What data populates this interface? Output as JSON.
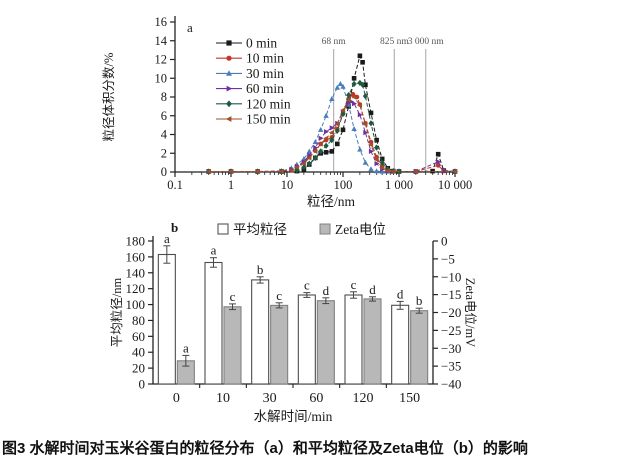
{
  "caption": "图3 水解时间对玉米谷蛋白的粒径分布（a）和平均粒径及Zeta电位（b）的影响",
  "chart_data": [
    {
      "type": "line",
      "panel_label": "a",
      "xlabel": "粒径/nm",
      "ylabel": "粒径体积分数/%",
      "x_scale": "log",
      "xlim": [
        0.1,
        10000
      ],
      "x_tick_labels": [
        "0.1",
        "1",
        "10",
        "100",
        "1 000",
        "10 000"
      ],
      "ylim": [
        0,
        16
      ],
      "y_tick_step": 2,
      "grid": false,
      "legend_position": "inside-top-left",
      "annotation_color": "#595959",
      "annotation_line_color": "#b5b5b5",
      "annotations": [
        {
          "x": 68,
          "label": "68 nm"
        },
        {
          "x": 825,
          "label": "825 nm"
        },
        {
          "x": 3000,
          "label": "3 000 nm"
        }
      ],
      "series": [
        {
          "name": "0 min",
          "color": "#1a1a1a",
          "marker": "square",
          "points": [
            [
              0.4,
              0.05
            ],
            [
              1,
              0.05
            ],
            [
              3,
              0.05
            ],
            [
              8,
              0.05
            ],
            [
              15,
              0.1
            ],
            [
              20,
              0.3
            ],
            [
              25,
              0.8
            ],
            [
              32,
              1.5
            ],
            [
              40,
              2.0
            ],
            [
              50,
              2.1
            ],
            [
              63,
              2.2
            ],
            [
              79,
              3.0
            ],
            [
              100,
              4.5
            ],
            [
              126,
              7.0
            ],
            [
              158,
              10.0
            ],
            [
              200,
              12.4
            ],
            [
              224,
              11.7
            ],
            [
              251,
              9.3
            ],
            [
              316,
              6.3
            ],
            [
              398,
              3.4
            ],
            [
              501,
              1.4
            ],
            [
              631,
              0.4
            ],
            [
              794,
              0.1
            ],
            [
              1000,
              0.05
            ],
            [
              2000,
              0.05
            ],
            [
              3981,
              0.1
            ],
            [
              5012,
              1.9
            ],
            [
              6310,
              0.15
            ],
            [
              10000,
              0.05
            ]
          ]
        },
        {
          "name": "10 min",
          "color": "#c1352b",
          "marker": "circle",
          "points": [
            [
              0.4,
              0.05
            ],
            [
              1,
              0.05
            ],
            [
              3,
              0.05
            ],
            [
              8,
              0.08
            ],
            [
              12,
              0.2
            ],
            [
              15,
              0.5
            ],
            [
              20,
              1.0
            ],
            [
              25,
              1.6
            ],
            [
              32,
              2.3
            ],
            [
              40,
              3.0
            ],
            [
              50,
              3.4
            ],
            [
              63,
              3.7
            ],
            [
              79,
              4.6
            ],
            [
              100,
              6.2
            ],
            [
              126,
              7.8
            ],
            [
              150,
              8.3
            ],
            [
              178,
              8.0
            ],
            [
              200,
              7.2
            ],
            [
              251,
              5.2
            ],
            [
              316,
              3.2
            ],
            [
              398,
              1.6
            ],
            [
              501,
              0.6
            ],
            [
              631,
              0.15
            ],
            [
              794,
              0.05
            ],
            [
              2000,
              0.05
            ],
            [
              5012,
              0.7
            ],
            [
              6310,
              0.1
            ],
            [
              10000,
              0.05
            ]
          ]
        },
        {
          "name": "30 min",
          "color": "#4a7ebb",
          "marker": "triangle-up",
          "points": [
            [
              0.4,
              0.05
            ],
            [
              1,
              0.05
            ],
            [
              3,
              0.05
            ],
            [
              8,
              0.1
            ],
            [
              12,
              0.4
            ],
            [
              15,
              0.8
            ],
            [
              20,
              1.4
            ],
            [
              25,
              2.2
            ],
            [
              32,
              3.2
            ],
            [
              40,
              4.5
            ],
            [
              50,
              6.0
            ],
            [
              63,
              7.8
            ],
            [
              79,
              9.0
            ],
            [
              90,
              9.4
            ],
            [
              100,
              9.1
            ],
            [
              126,
              7.2
            ],
            [
              158,
              4.6
            ],
            [
              200,
              2.4
            ],
            [
              251,
              1.0
            ],
            [
              316,
              0.3
            ],
            [
              398,
              0.1
            ],
            [
              501,
              0.05
            ],
            [
              631,
              0.05
            ],
            [
              10000,
              0.05
            ]
          ]
        },
        {
          "name": "60 min",
          "color": "#70309f",
          "marker": "triangle-right",
          "points": [
            [
              0.4,
              0.05
            ],
            [
              1,
              0.05
            ],
            [
              3,
              0.05
            ],
            [
              8,
              0.1
            ],
            [
              12,
              0.3
            ],
            [
              15,
              0.6
            ],
            [
              20,
              1.1
            ],
            [
              25,
              1.8
            ],
            [
              32,
              2.6
            ],
            [
              40,
              3.6
            ],
            [
              50,
              4.3
            ],
            [
              63,
              4.7
            ],
            [
              79,
              5.2
            ],
            [
              100,
              6.4
            ],
            [
              126,
              7.4
            ],
            [
              141,
              7.5
            ],
            [
              158,
              7.3
            ],
            [
              200,
              6.1
            ],
            [
              251,
              4.2
            ],
            [
              316,
              2.2
            ],
            [
              398,
              0.9
            ],
            [
              501,
              0.3
            ],
            [
              631,
              0.1
            ],
            [
              794,
              0.05
            ],
            [
              2000,
              0.05
            ],
            [
              5012,
              1.1
            ],
            [
              6310,
              0.1
            ],
            [
              10000,
              0.05
            ]
          ]
        },
        {
          "name": "120 min",
          "color": "#1d5c40",
          "marker": "diamond",
          "points": [
            [
              0.4,
              0.05
            ],
            [
              1,
              0.05
            ],
            [
              3,
              0.05
            ],
            [
              8,
              0.05
            ],
            [
              15,
              0.2
            ],
            [
              20,
              0.5
            ],
            [
              25,
              0.9
            ],
            [
              32,
              1.5
            ],
            [
              40,
              2.2
            ],
            [
              50,
              2.8
            ],
            [
              63,
              3.4
            ],
            [
              79,
              4.4
            ],
            [
              100,
              6.2
            ],
            [
              126,
              8.2
            ],
            [
              158,
              9.4
            ],
            [
              200,
              9.5
            ],
            [
              224,
              9.3
            ],
            [
              251,
              8.1
            ],
            [
              316,
              5.2
            ],
            [
              398,
              2.6
            ],
            [
              501,
              1.0
            ],
            [
              631,
              0.3
            ],
            [
              794,
              0.1
            ],
            [
              1000,
              0.05
            ],
            [
              10000,
              0.05
            ]
          ]
        },
        {
          "name": "150 min",
          "color": "#a04f28",
          "marker": "triangle-left",
          "points": [
            [
              0.4,
              0.05
            ],
            [
              1,
              0.05
            ],
            [
              3,
              0.05
            ],
            [
              8,
              0.08
            ],
            [
              12,
              0.2
            ],
            [
              15,
              0.5
            ],
            [
              20,
              0.9
            ],
            [
              25,
              1.5
            ],
            [
              32,
              2.2
            ],
            [
              40,
              3.0
            ],
            [
              50,
              3.6
            ],
            [
              63,
              4.2
            ],
            [
              79,
              5.1
            ],
            [
              100,
              6.6
            ],
            [
              126,
              7.7
            ],
            [
              158,
              8.0
            ],
            [
              200,
              7.1
            ],
            [
              251,
              5.1
            ],
            [
              316,
              2.9
            ],
            [
              398,
              1.3
            ],
            [
              501,
              0.45
            ],
            [
              631,
              0.15
            ],
            [
              794,
              0.05
            ],
            [
              2000,
              0.05
            ],
            [
              10000,
              0.05
            ]
          ]
        }
      ]
    },
    {
      "type": "bar",
      "panel_label": "b",
      "xlabel": "水解时间/min",
      "categories": [
        "0",
        "10",
        "30",
        "60",
        "120",
        "150"
      ],
      "left_axis": {
        "label": "平均粒径/nm",
        "lim": [
          0,
          180
        ],
        "tick_step": 20
      },
      "right_axis": {
        "label": "Zeta电位/mV",
        "lim": [
          0,
          -40
        ],
        "tick_labels": [
          "0",
          "−5",
          "−10",
          "−15",
          "−20",
          "−25",
          "−30",
          "−35",
          "−40"
        ]
      },
      "legend_position": "top-center",
      "series": [
        {
          "name": "平均粒径",
          "axis": "left",
          "fill": "#ffffff",
          "border": "#4d4d4d",
          "values": [
            163,
            153,
            131,
            112,
            112,
            99
          ],
          "errors": [
            11,
            6,
            4,
            3,
            4,
            5
          ],
          "letters": [
            "a",
            "a",
            "b",
            "c",
            "c",
            "d"
          ]
        },
        {
          "name": "Zeta电位",
          "axis": "right",
          "fill": "#b8b8b8",
          "border": "#808080",
          "values": [
            -33.5,
            -18.4,
            -18.0,
            -16.7,
            -16.2,
            -19.5
          ],
          "errors": [
            1.5,
            0.8,
            0.7,
            0.8,
            0.6,
            0.7
          ],
          "letters": [
            "a",
            "c",
            "c",
            "d",
            "d",
            "b"
          ]
        }
      ]
    }
  ]
}
